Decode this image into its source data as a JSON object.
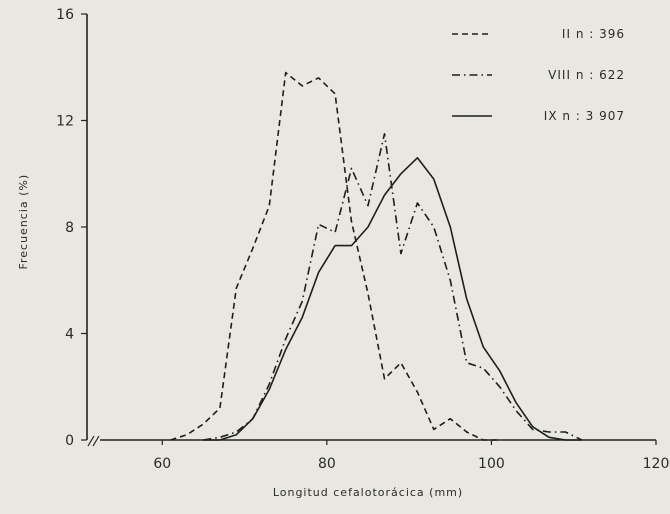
{
  "chart_data": {
    "type": "line",
    "title": "",
    "xlabel": "Longitud cefalotorácica (mm)",
    "ylabel": "Frecuencia (%)",
    "xlim": [
      50,
      120
    ],
    "ylim": [
      0,
      16
    ],
    "xticks": [
      60,
      80,
      100,
      120
    ],
    "yticks": [
      0,
      4,
      8,
      12,
      16
    ],
    "legend_position": "top-right",
    "series": [
      {
        "name": "II n = 396",
        "legend_label": "II n : 396",
        "dash": "dashed",
        "x": [
          61,
          63,
          65,
          67,
          69,
          71,
          73,
          75,
          77,
          79,
          81,
          83,
          85,
          87,
          89,
          91,
          93,
          95,
          97,
          99,
          101
        ],
        "y": [
          0,
          0.2,
          0.6,
          1.2,
          5.7,
          7.2,
          8.8,
          13.8,
          13.3,
          13.6,
          13.0,
          8.2,
          5.5,
          2.3,
          2.9,
          1.8,
          0.4,
          0.8,
          0.3,
          0,
          0
        ]
      },
      {
        "name": "VIII n = 622",
        "legend_label": "VIII n : 622",
        "dash": "dashdot",
        "x": [
          65,
          67,
          69,
          71,
          73,
          75,
          77,
          79,
          81,
          83,
          85,
          87,
          89,
          91,
          93,
          95,
          97,
          99,
          101,
          103,
          105,
          107,
          109,
          111
        ],
        "y": [
          0,
          0.1,
          0.3,
          0.8,
          2.1,
          3.8,
          5.2,
          8.1,
          7.8,
          10.2,
          8.8,
          11.5,
          7.0,
          8.9,
          8.0,
          6.0,
          2.9,
          2.7,
          2.0,
          1.1,
          0.4,
          0.3,
          0.3,
          0
        ]
      },
      {
        "name": "IX n = 3907",
        "legend_label": "IX n : 3 907",
        "dash": "solid",
        "x": [
          65,
          67,
          69,
          71,
          73,
          75,
          77,
          79,
          81,
          83,
          85,
          87,
          89,
          91,
          93,
          95,
          97,
          99,
          101,
          103,
          105,
          107,
          109,
          111
        ],
        "y": [
          0,
          0,
          0.2,
          0.8,
          1.9,
          3.4,
          4.6,
          6.3,
          7.3,
          7.3,
          8.0,
          9.2,
          10.0,
          10.6,
          9.8,
          8.0,
          5.3,
          3.5,
          2.6,
          1.4,
          0.5,
          0.1,
          0,
          0
        ]
      }
    ]
  }
}
